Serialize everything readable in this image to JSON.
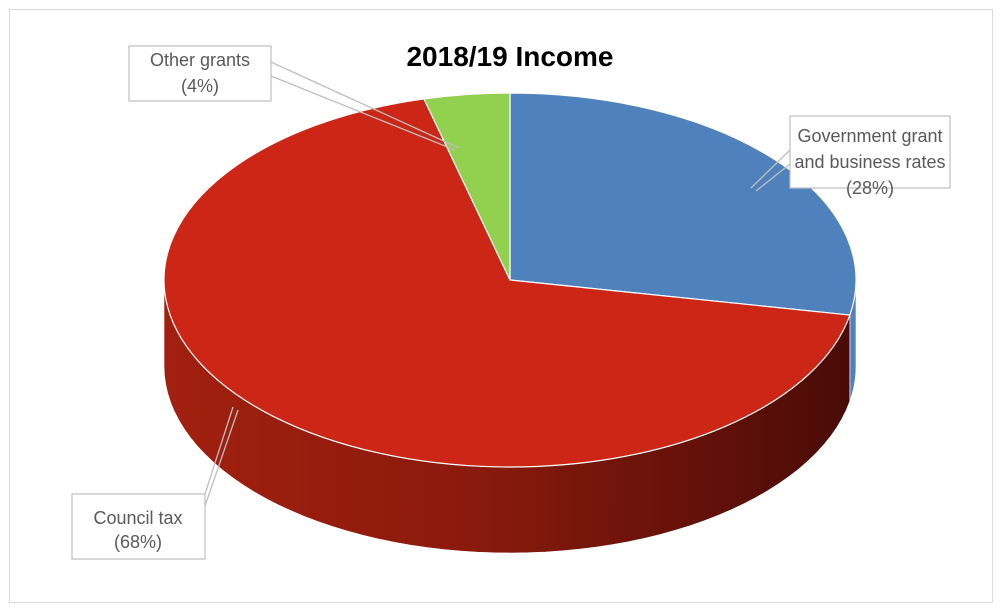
{
  "chart_data": {
    "type": "pie",
    "title": "2018/19 Income",
    "slices": [
      {
        "label": "Government grant and business rates",
        "label_lines": [
          "Government grant",
          "and business rates"
        ],
        "value_label": "(28%)",
        "value": 28,
        "color": "#4f81bd"
      },
      {
        "label": "Council tax",
        "label_lines": [
          "Council tax"
        ],
        "value_label": "(68%)",
        "value": 68,
        "color": "#cb2616"
      },
      {
        "label": "Other grants",
        "label_lines": [
          "Other grants"
        ],
        "value_label": "(4%)",
        "value": 4,
        "color": "#92d050"
      }
    ],
    "style": "3d",
    "start_angle": "12 o'clock",
    "direction": "clockwise",
    "legend": "none",
    "data_labels": "outside with leader lines"
  }
}
